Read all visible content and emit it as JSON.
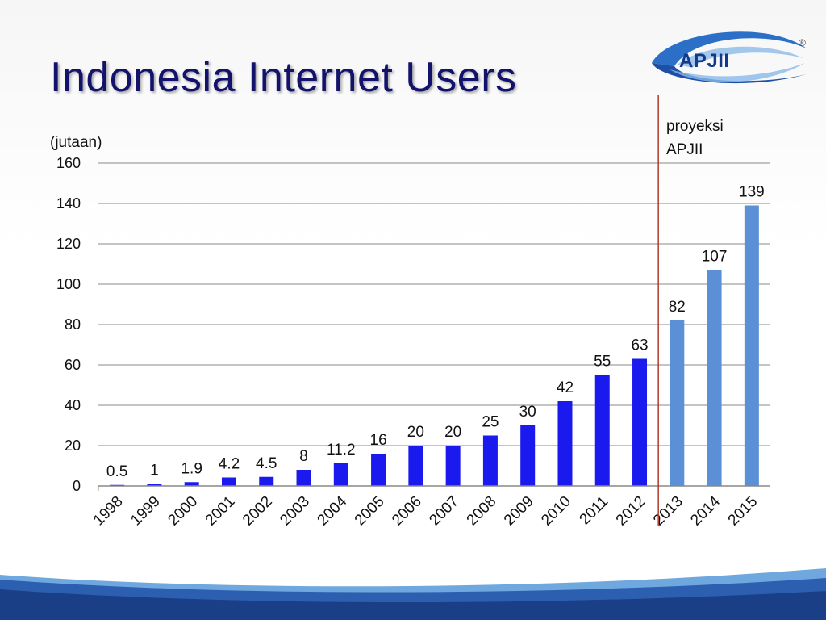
{
  "title": "Indonesia Internet Users",
  "logo": {
    "text": "APJII",
    "registered_mark": "®"
  },
  "projection_note": {
    "line1": "proyeksi",
    "line2": "APJII"
  },
  "colors": {
    "actual": "#1a1aee",
    "projection": "#5b8fd6",
    "divider": "#b23a2a",
    "title": "#13136b"
  },
  "chart_data": {
    "type": "bar",
    "title": "Indonesia Internet Users",
    "ylabel": "(jutaan)",
    "xlabel": "",
    "ylim": [
      0,
      160
    ],
    "yticks": [
      0,
      20,
      40,
      60,
      80,
      100,
      120,
      140,
      160
    ],
    "grid": true,
    "categories": [
      "1998",
      "1999",
      "2000",
      "2001",
      "2002",
      "2003",
      "2004",
      "2005",
      "2006",
      "2007",
      "2008",
      "2009",
      "2010",
      "2011",
      "2012",
      "2013",
      "2014",
      "2015"
    ],
    "values": [
      0.5,
      1,
      1.9,
      4.2,
      4.5,
      8,
      11.2,
      16,
      20,
      20,
      25,
      30,
      42,
      55,
      63,
      82,
      107,
      139
    ],
    "data_labels": [
      "0.5",
      "1",
      "1.9",
      "4.2",
      "4.5",
      "8",
      "11.2",
      "16",
      "20",
      "20",
      "25",
      "30",
      "42",
      "55",
      "63",
      "82",
      "107",
      "139"
    ],
    "projected": [
      false,
      false,
      false,
      false,
      false,
      false,
      false,
      false,
      false,
      false,
      false,
      false,
      false,
      false,
      false,
      true,
      true,
      true
    ]
  }
}
